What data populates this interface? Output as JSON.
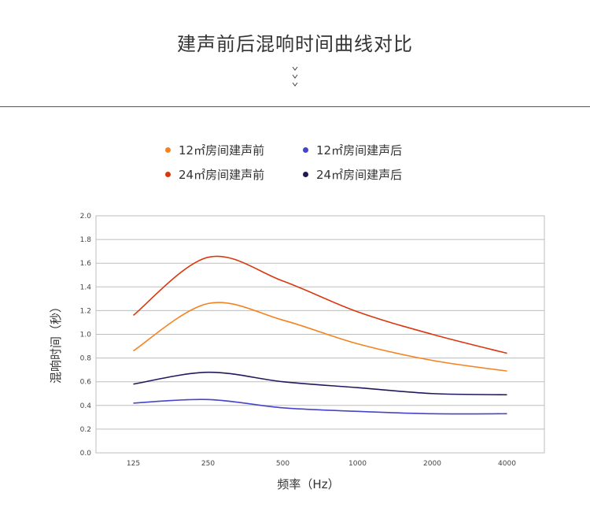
{
  "page": {
    "title": "建声前后混响时间曲线对比"
  },
  "chart_data": {
    "type": "line",
    "xlabel": "频率（Hz）",
    "ylabel": "混响时间（秒）",
    "categories": [
      "125",
      "250",
      "500",
      "1000",
      "2000",
      "4000"
    ],
    "yticks": [
      "0.0",
      "0.2",
      "0.4",
      "0.6",
      "0.8",
      "1.0",
      "1.2",
      "1.4",
      "1.6",
      "1.8",
      "2.0"
    ],
    "ylim": [
      0,
      2.0
    ],
    "grid": true,
    "legend_position": "top",
    "series": [
      {
        "name": "12㎡房间建声前",
        "color": "#f5821f",
        "values": [
          0.86,
          1.26,
          1.12,
          0.92,
          0.78,
          0.69
        ]
      },
      {
        "name": "12㎡房间建声后",
        "color": "#4444cc",
        "values": [
          0.42,
          0.45,
          0.38,
          0.35,
          0.33,
          0.33
        ]
      },
      {
        "name": "24㎡房间建声前",
        "color": "#d9380e",
        "values": [
          1.16,
          1.65,
          1.45,
          1.19,
          1.0,
          0.84
        ]
      },
      {
        "name": "24㎡房间建声后",
        "color": "#1e1a5c",
        "values": [
          0.58,
          0.68,
          0.6,
          0.55,
          0.5,
          0.49
        ]
      }
    ]
  }
}
